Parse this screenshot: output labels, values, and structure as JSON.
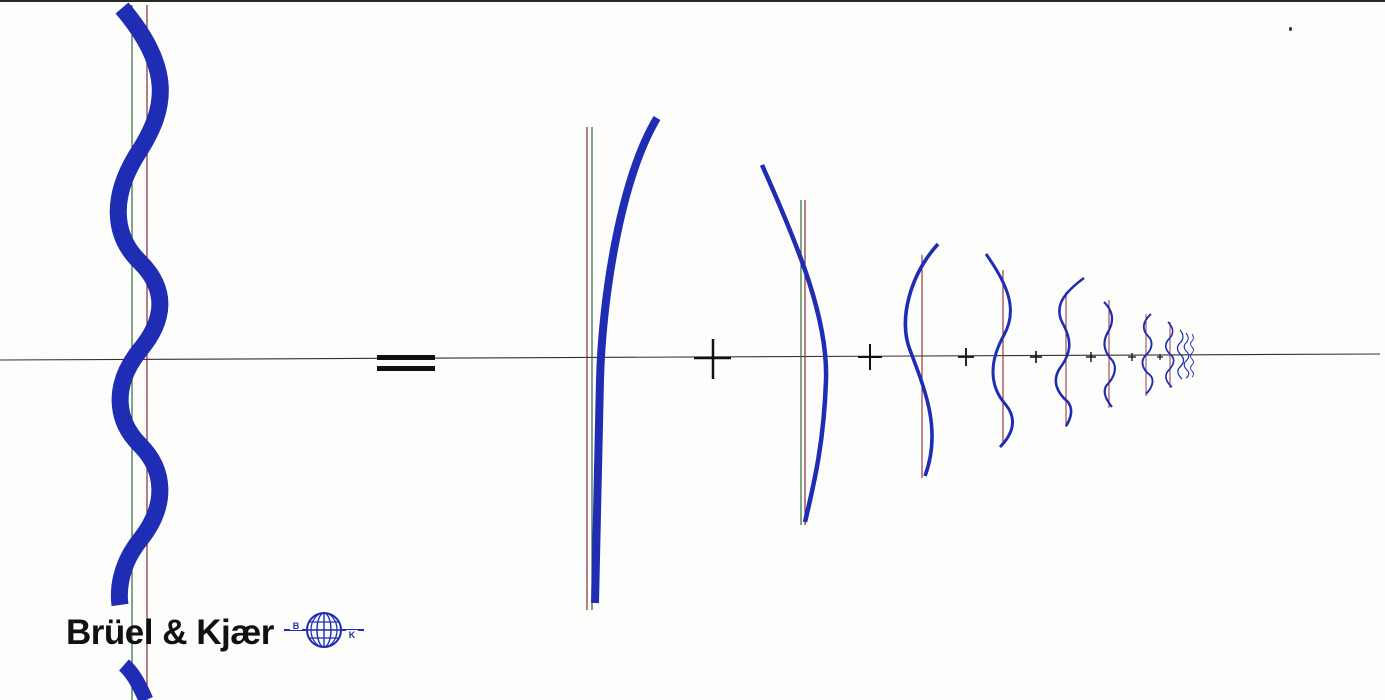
{
  "brand": {
    "name": "Brüel & Kjær",
    "logo_letters": [
      "B",
      "K"
    ],
    "logo_icon": "globe-icon"
  },
  "figure": {
    "curve_color": "#1e2db3",
    "axis_color": "#333333",
    "marker_color_green": "#2f6b3a",
    "marker_color_red": "#8a2a3a",
    "operators": [
      "=",
      "+",
      "+",
      "+",
      "+",
      "+",
      "+",
      "+"
    ]
  }
}
